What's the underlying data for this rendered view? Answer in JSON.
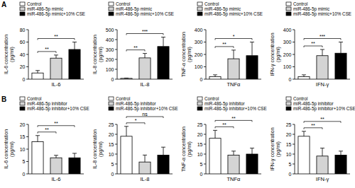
{
  "panel_labels": [
    "A",
    "B"
  ],
  "chart_data": [
    {
      "type": "bar",
      "categories": [
        "IL-6"
      ],
      "ylabel": [
        "IL-6 concentration",
        "(pg/ml)"
      ],
      "ylim": [
        0,
        80
      ],
      "yticks": [
        0,
        20,
        40,
        60,
        80
      ],
      "legend": "upper left",
      "series": [
        {
          "name": "Control",
          "color": "#ffffff",
          "values": [
            10
          ],
          "errors": [
            4
          ]
        },
        {
          "name": "miR-486-5p mimic",
          "color": "#d4d4d4",
          "values": [
            34
          ],
          "errors": [
            5
          ]
        },
        {
          "name": "miR-486-5p mimic+10% CSE",
          "color": "#000000",
          "values": [
            48
          ],
          "errors": [
            12
          ]
        }
      ],
      "annotations": [
        {
          "text": "**",
          "between": [
            "Control",
            "miR-486-5p mimic"
          ]
        },
        {
          "text": "**",
          "between": [
            "Control",
            "miR-486-5p mimic+10% CSE"
          ]
        }
      ]
    },
    {
      "type": "bar",
      "categories": [
        "IL-8"
      ],
      "ylabel": [
        "IL-8 concentration",
        "(pg/ml)"
      ],
      "ylim": [
        0,
        500
      ],
      "yticks": [
        0,
        100,
        200,
        300,
        400,
        500
      ],
      "legend": "upper left",
      "series": [
        {
          "name": "Control",
          "color": "#ffffff",
          "values": [
            8
          ],
          "errors": [
            3
          ]
        },
        {
          "name": "miR-486-5p mimic",
          "color": "#d4d4d4",
          "values": [
            215
          ],
          "errors": [
            45
          ]
        },
        {
          "name": "miR-486-5p mimic+10% CSE",
          "color": "#000000",
          "values": [
            330
          ],
          "errors": [
            95
          ]
        }
      ],
      "annotations": [
        {
          "text": "**",
          "between": [
            "Control",
            "miR-486-5p mimic"
          ]
        },
        {
          "text": "***",
          "between": [
            "Control",
            "miR-486-5p mimic+10% CSE"
          ]
        }
      ]
    },
    {
      "type": "bar",
      "categories": [
        "TNFα"
      ],
      "ylabel": [
        "TNF-α concentration",
        "(pg/ml)"
      ],
      "ylim": [
        0,
        400
      ],
      "yticks": [
        0,
        100,
        200,
        300,
        400
      ],
      "legend": "upper left",
      "series": [
        {
          "name": "Control",
          "color": "#ffffff",
          "values": [
            20
          ],
          "errors": [
            15
          ]
        },
        {
          "name": "miR-486-5p mimic",
          "color": "#d4d4d4",
          "values": [
            165
          ],
          "errors": [
            70
          ]
        },
        {
          "name": "miR-486-5p mimic+10% CSE",
          "color": "#000000",
          "values": [
            190
          ],
          "errors": [
            110
          ]
        }
      ],
      "annotations": [
        {
          "text": "**",
          "between": [
            "Control",
            "miR-486-5p mimic"
          ]
        },
        {
          "text": "*",
          "between": [
            "Control",
            "miR-486-5p mimic+10% CSE"
          ]
        }
      ]
    },
    {
      "type": "bar",
      "categories": [
        "IFN-γ"
      ],
      "ylabel": [
        "IFN-γ concentration",
        "(pg/ml)"
      ],
      "ylim": [
        0,
        400
      ],
      "yticks": [
        0,
        100,
        200,
        300,
        400
      ],
      "legend": "upper left",
      "series": [
        {
          "name": "Control",
          "color": "#ffffff",
          "values": [
            20
          ],
          "errors": [
            15
          ]
        },
        {
          "name": "miR-486-5p mimic",
          "color": "#d4d4d4",
          "values": [
            190
          ],
          "errors": [
            50
          ]
        },
        {
          "name": "miR-486-5p mimic+10% CSE",
          "color": "#000000",
          "values": [
            210
          ],
          "errors": [
            90
          ]
        }
      ],
      "annotations": [
        {
          "text": "**",
          "between": [
            "Control",
            "miR-486-5p mimic"
          ]
        },
        {
          "text": "***",
          "between": [
            "Control",
            "miR-486-5p mimic+10% CSE"
          ]
        }
      ]
    },
    {
      "type": "bar",
      "categories": [
        "IL-6"
      ],
      "ylabel": [
        "IL-6 concentration",
        "(pg/ml)"
      ],
      "ylim": [
        0,
        20
      ],
      "yticks": [
        0,
        5,
        10,
        15,
        20
      ],
      "legend": "upper left",
      "series": [
        {
          "name": "Control",
          "color": "#ffffff",
          "values": [
            13
          ],
          "errors": [
            2.5
          ]
        },
        {
          "name": "miR-486-5p inhibitor",
          "color": "#d4d4d4",
          "values": [
            6.5
          ],
          "errors": [
            1
          ]
        },
        {
          "name": "miR-486-5p inhibitor+10% CSE",
          "color": "#000000",
          "values": [
            6.5
          ],
          "errors": [
            1.8
          ]
        }
      ],
      "annotations": [
        {
          "text": "**",
          "between": [
            "Control",
            "miR-486-5p inhibitor"
          ]
        },
        {
          "text": "**",
          "between": [
            "Control",
            "miR-486-5p inhibitor+10% CSE"
          ]
        }
      ]
    },
    {
      "type": "bar",
      "categories": [
        "IL-8"
      ],
      "ylabel": [
        "IL-8 concentration",
        "(pg/ml)"
      ],
      "ylim": [
        0,
        25
      ],
      "yticks": [
        0,
        5,
        10,
        15,
        20,
        25
      ],
      "legend": "upper left",
      "series": [
        {
          "name": "Control",
          "color": "#ffffff",
          "values": [
            19
          ],
          "errors": [
            5
          ]
        },
        {
          "name": "miR-486-5p inhibitor",
          "color": "#d4d4d4",
          "values": [
            6
          ],
          "errors": [
            3.5
          ]
        },
        {
          "name": "miR-486-5p inhibitor+10% CSE",
          "color": "#000000",
          "values": [
            9.5
          ],
          "errors": [
            4
          ]
        }
      ],
      "annotations": [
        {
          "text": "*",
          "between": [
            "Control",
            "miR-486-5p inhibitor"
          ]
        },
        {
          "text": "ns",
          "between": [
            "Control",
            "miR-486-5p inhibitor+10% CSE"
          ]
        }
      ]
    },
    {
      "type": "bar",
      "categories": [
        "TNFα"
      ],
      "ylabel": [
        "TNF-α concentration",
        "(pg/ml)"
      ],
      "ylim": [
        0,
        25
      ],
      "yticks": [
        0,
        5,
        10,
        15,
        20,
        25
      ],
      "legend": "upper left",
      "series": [
        {
          "name": "Control",
          "color": "#ffffff",
          "values": [
            18
          ],
          "errors": [
            4
          ]
        },
        {
          "name": "miR-486-5p inhibitor",
          "color": "#d4d4d4",
          "values": [
            9.5
          ],
          "errors": [
            2
          ]
        },
        {
          "name": "miR-486-5p inhibitor+10% CSE",
          "color": "#000000",
          "values": [
            10
          ],
          "errors": [
            3
          ]
        }
      ],
      "annotations": [
        {
          "text": "**",
          "between": [
            "Control",
            "miR-486-5p inhibitor"
          ]
        },
        {
          "text": "**",
          "between": [
            "Control",
            "miR-486-5p inhibitor+10% CSE"
          ]
        }
      ]
    },
    {
      "type": "bar",
      "categories": [
        "IFN-γ"
      ],
      "ylabel": [
        "IFN-γ concentration",
        "(pg/ml)"
      ],
      "ylim": [
        0,
        25
      ],
      "yticks": [
        0,
        5,
        10,
        15,
        20,
        25
      ],
      "legend": "upper left",
      "series": [
        {
          "name": "Control",
          "color": "#ffffff",
          "values": [
            19
          ],
          "errors": [
            2.5
          ]
        },
        {
          "name": "miR-486-5p inhibitor",
          "color": "#d4d4d4",
          "values": [
            9
          ],
          "errors": [
            4
          ]
        },
        {
          "name": "miR-486-5p inhibitor+10% CSE",
          "color": "#000000",
          "values": [
            9.5
          ],
          "errors": [
            2
          ]
        }
      ],
      "annotations": [
        {
          "text": "**",
          "between": [
            "Control",
            "miR-486-5p inhibitor"
          ]
        },
        {
          "text": "**",
          "between": [
            "Control",
            "miR-486-5p inhibitor+10% CSE"
          ]
        }
      ]
    }
  ]
}
